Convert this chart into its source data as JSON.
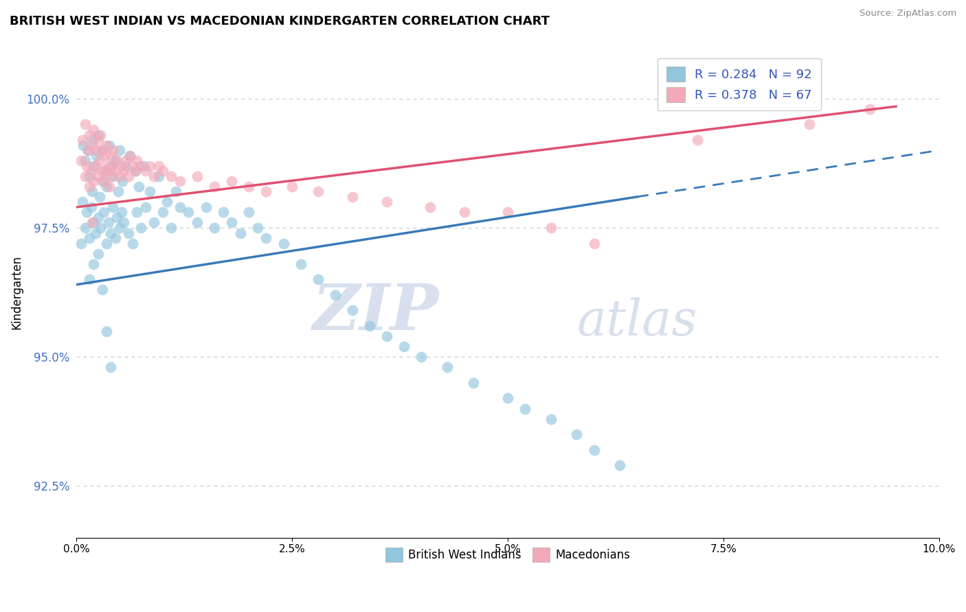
{
  "title": "BRITISH WEST INDIAN VS MACEDONIAN KINDERGARTEN CORRELATION CHART",
  "source_text": "Source: ZipAtlas.com",
  "ylabel": "Kindergarten",
  "xlim": [
    0.0,
    10.0
  ],
  "yticks": [
    92.5,
    95.0,
    97.5,
    100.0
  ],
  "xticks": [
    0.0,
    2.5,
    5.0,
    7.5,
    10.0
  ],
  "blue_color": "#92c5de",
  "pink_color": "#f4a9b8",
  "blue_line_color": "#3a7ab8",
  "pink_line_color": "#e05070",
  "legend_text_color": "#3355bb",
  "ytick_color": "#4472c4",
  "r_blue": 0.284,
  "n_blue": 92,
  "r_pink": 0.378,
  "n_pink": 67,
  "watermark_zip": "ZIP",
  "watermark_atlas": "atlas",
  "blue_line_x0": 0.0,
  "blue_line_y0": 96.4,
  "blue_line_x1": 6.5,
  "blue_line_y1": 98.1,
  "blue_dash_x0": 6.5,
  "blue_dash_y0": 98.1,
  "blue_dash_x1": 10.0,
  "blue_dash_y1": 99.0,
  "pink_line_x0": 0.0,
  "pink_line_y0": 97.9,
  "pink_line_x1": 9.5,
  "pink_line_y1": 99.85,
  "blue_scatter_x": [
    0.05,
    0.07,
    0.08,
    0.1,
    0.1,
    0.12,
    0.13,
    0.15,
    0.15,
    0.17,
    0.18,
    0.19,
    0.2,
    0.2,
    0.22,
    0.23,
    0.25,
    0.25,
    0.27,
    0.28,
    0.3,
    0.3,
    0.32,
    0.33,
    0.35,
    0.35,
    0.37,
    0.38,
    0.4,
    0.4,
    0.42,
    0.43,
    0.45,
    0.45,
    0.47,
    0.48,
    0.5,
    0.5,
    0.52,
    0.53,
    0.55,
    0.57,
    0.6,
    0.62,
    0.65,
    0.68,
    0.7,
    0.72,
    0.75,
    0.78,
    0.8,
    0.85,
    0.9,
    0.95,
    1.0,
    1.05,
    1.1,
    1.15,
    1.2,
    1.3,
    1.4,
    1.5,
    1.6,
    1.7,
    1.8,
    1.9,
    2.0,
    2.1,
    2.2,
    2.4,
    2.6,
    2.8,
    3.0,
    3.2,
    3.4,
    3.6,
    3.8,
    4.0,
    4.3,
    4.6,
    5.0,
    5.2,
    5.5,
    5.8,
    6.0,
    6.3,
    0.15,
    0.2,
    0.25,
    0.3,
    0.35,
    0.4
  ],
  "blue_scatter_y": [
    97.2,
    98.0,
    99.1,
    97.5,
    98.8,
    97.8,
    99.0,
    97.3,
    98.5,
    97.9,
    98.2,
    99.2,
    97.6,
    98.7,
    97.4,
    98.9,
    97.7,
    99.3,
    98.1,
    97.5,
    98.4,
    99.0,
    97.8,
    98.6,
    97.2,
    98.3,
    97.6,
    99.1,
    97.4,
    98.7,
    97.9,
    98.5,
    97.3,
    98.8,
    97.7,
    98.2,
    97.5,
    99.0,
    97.8,
    98.4,
    97.6,
    98.7,
    97.4,
    98.9,
    97.2,
    98.6,
    97.8,
    98.3,
    97.5,
    98.7,
    97.9,
    98.2,
    97.6,
    98.5,
    97.8,
    98.0,
    97.5,
    98.2,
    97.9,
    97.8,
    97.6,
    97.9,
    97.5,
    97.8,
    97.6,
    97.4,
    97.8,
    97.5,
    97.3,
    97.2,
    96.8,
    96.5,
    96.2,
    95.9,
    95.6,
    95.4,
    95.2,
    95.0,
    94.8,
    94.5,
    94.2,
    94.0,
    93.8,
    93.5,
    93.2,
    92.9,
    96.5,
    96.8,
    97.0,
    96.3,
    95.5,
    94.8
  ],
  "pink_scatter_x": [
    0.05,
    0.07,
    0.1,
    0.1,
    0.12,
    0.13,
    0.15,
    0.15,
    0.17,
    0.18,
    0.2,
    0.2,
    0.22,
    0.23,
    0.25,
    0.25,
    0.27,
    0.28,
    0.3,
    0.3,
    0.32,
    0.33,
    0.35,
    0.35,
    0.37,
    0.38,
    0.4,
    0.4,
    0.42,
    0.43,
    0.45,
    0.47,
    0.5,
    0.52,
    0.55,
    0.57,
    0.6,
    0.62,
    0.65,
    0.68,
    0.7,
    0.75,
    0.8,
    0.85,
    0.9,
    0.95,
    1.0,
    1.1,
    1.2,
    1.4,
    1.6,
    1.8,
    2.0,
    2.2,
    2.5,
    2.8,
    3.2,
    3.6,
    4.1,
    4.5,
    5.0,
    5.5,
    6.0,
    7.2,
    8.5,
    9.2,
    0.18
  ],
  "pink_scatter_y": [
    98.8,
    99.2,
    98.5,
    99.5,
    98.7,
    99.0,
    98.3,
    99.3,
    98.6,
    99.1,
    98.4,
    99.4,
    98.7,
    99.0,
    98.5,
    99.2,
    98.8,
    99.3,
    98.6,
    99.0,
    98.4,
    98.9,
    98.6,
    99.1,
    98.7,
    98.3,
    98.9,
    98.5,
    98.7,
    99.0,
    98.6,
    98.8,
    98.5,
    98.7,
    98.6,
    98.8,
    98.5,
    98.9,
    98.7,
    98.6,
    98.8,
    98.7,
    98.6,
    98.7,
    98.5,
    98.7,
    98.6,
    98.5,
    98.4,
    98.5,
    98.3,
    98.4,
    98.3,
    98.2,
    98.3,
    98.2,
    98.1,
    98.0,
    97.9,
    97.8,
    97.8,
    97.5,
    97.2,
    99.2,
    99.5,
    99.8,
    97.6
  ]
}
